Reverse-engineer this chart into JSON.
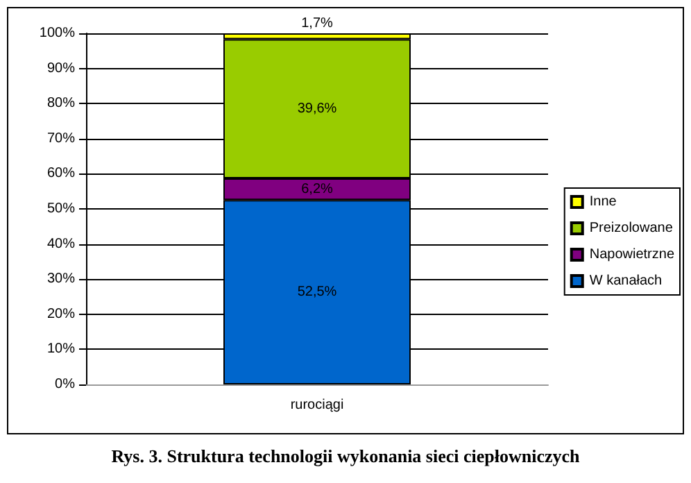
{
  "chart_data": {
    "type": "bar",
    "title": "Rys. 3. Struktura technologii wykonania sieci ciepłowniczych",
    "categories": [
      "rurociągi"
    ],
    "stacked": true,
    "series": [
      {
        "name": "W kanałach",
        "color": "#0066cc",
        "values": [
          52.5
        ],
        "value_labels": [
          "52,5%"
        ]
      },
      {
        "name": "Napowietrzne",
        "color": "#800080",
        "values": [
          6.2
        ],
        "value_labels": [
          "6,2%"
        ]
      },
      {
        "name": "Preizolowane",
        "color": "#99cc00",
        "values": [
          39.6
        ],
        "value_labels": [
          "39,6%"
        ]
      },
      {
        "name": "Inne",
        "color": "#ffff00",
        "values": [
          1.7
        ],
        "value_labels": [
          "1,7%"
        ]
      }
    ],
    "ylim": [
      0,
      100
    ],
    "yticks": [
      {
        "value": 0,
        "label": "0%"
      },
      {
        "value": 10,
        "label": "10%"
      },
      {
        "value": 20,
        "label": "20%"
      },
      {
        "value": 30,
        "label": "30%"
      },
      {
        "value": 40,
        "label": "40%"
      },
      {
        "value": 50,
        "label": "50%"
      },
      {
        "value": 60,
        "label": "60%"
      },
      {
        "value": 70,
        "label": "70%"
      },
      {
        "value": 80,
        "label": "80%"
      },
      {
        "value": 90,
        "label": "90%"
      },
      {
        "value": 100,
        "label": "100%"
      }
    ],
    "grid": "y",
    "legend": "right"
  }
}
